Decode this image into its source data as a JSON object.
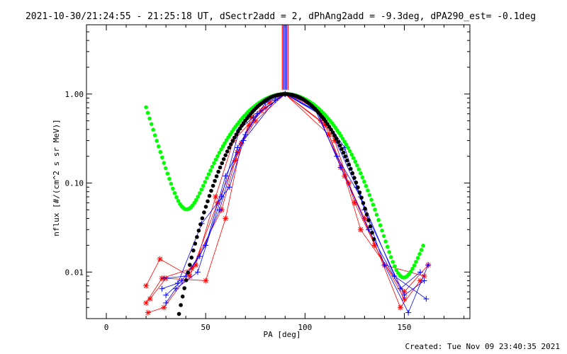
{
  "chart_data": {
    "type": "scatter",
    "title": "2021-10-30/21:24:55 - 21:25:18 UT, dSectr2add = 2, dPhAng2add = -9.3deg, dPA290_est= -0.1deg",
    "xlabel": "PA [deg]",
    "ylabel": "nflux [#/(cm^2 s sr MeV)]",
    "xlim": [
      -10,
      183
    ],
    "ylim": [
      0.003,
      6
    ],
    "yscale": "log",
    "grid": false,
    "x_ticks": [
      0,
      50,
      100,
      150
    ],
    "x_tick_labels": [
      "0",
      "50",
      "100",
      "150"
    ],
    "y_ticks": [
      0.01,
      0.1,
      1.0
    ],
    "y_tick_labels": [
      "0.01",
      "0.10",
      "1.00"
    ],
    "colors": {
      "red": "#ff0000",
      "blue": "#0000ff",
      "green": "#00ff00",
      "black": "#000000"
    },
    "series": [
      {
        "color": "#ff0000",
        "style": "line-star",
        "x": [
          20,
          28,
          43,
          58,
          66,
          72,
          80,
          90,
          110,
          120,
          128,
          150,
          162
        ],
        "y": [
          0.0045,
          0.0085,
          0.011,
          0.05,
          0.22,
          0.45,
          0.7,
          1.0,
          0.45,
          0.12,
          0.03,
          0.006,
          0.012
        ]
      },
      {
        "color": "#ff0000",
        "style": "line-star",
        "x": [
          20,
          27,
          42,
          56,
          65,
          73,
          82,
          90,
          108,
          118,
          130,
          148,
          158
        ],
        "y": [
          0.007,
          0.014,
          0.009,
          0.06,
          0.18,
          0.55,
          0.8,
          1.0,
          0.5,
          0.15,
          0.04,
          0.004,
          0.008
        ]
      },
      {
        "color": "#ff0000",
        "style": "line-star",
        "x": [
          22,
          30,
          50,
          60,
          68,
          75,
          90,
          112,
          122,
          135,
          150
        ],
        "y": [
          0.005,
          0.0085,
          0.008,
          0.04,
          0.28,
          0.5,
          1.0,
          0.35,
          0.1,
          0.02,
          0.005
        ]
      },
      {
        "color": "#ff0000",
        "style": "line-star",
        "x": [
          21,
          29,
          45,
          55,
          64,
          78,
          90,
          105,
          115,
          125,
          140,
          160
        ],
        "y": [
          0.0035,
          0.004,
          0.012,
          0.07,
          0.3,
          0.65,
          1.0,
          0.7,
          0.3,
          0.06,
          0.012,
          0.009
        ]
      },
      {
        "color": "#0000ff",
        "style": "line-plus",
        "x": [
          30,
          35,
          46,
          58,
          67,
          74,
          90,
          108,
          120,
          130,
          150,
          160
        ],
        "y": [
          0.0045,
          0.0065,
          0.01,
          0.07,
          0.4,
          0.55,
          1.0,
          0.6,
          0.25,
          0.05,
          0.0055,
          0.008
        ]
      },
      {
        "color": "#0000ff",
        "style": "line-plus",
        "x": [
          28,
          36,
          48,
          62,
          70,
          80,
          90,
          110,
          126,
          140,
          152,
          162
        ],
        "y": [
          0.0065,
          0.0075,
          0.035,
          0.09,
          0.35,
          0.8,
          1.0,
          0.55,
          0.09,
          0.012,
          0.0035,
          0.012
        ]
      },
      {
        "color": "#0000ff",
        "style": "line-plus",
        "x": [
          29,
          40,
          50,
          60,
          69,
          85,
          90,
          106,
          118,
          132,
          148,
          158
        ],
        "y": [
          0.0085,
          0.009,
          0.02,
          0.12,
          0.3,
          0.85,
          1.0,
          0.65,
          0.15,
          0.03,
          0.0065,
          0.01
        ]
      },
      {
        "color": "#0000ff",
        "style": "line-plus",
        "x": [
          30,
          38,
          47,
          57,
          66,
          76,
          90,
          104,
          116,
          128,
          145,
          161
        ],
        "y": [
          0.0055,
          0.008,
          0.015,
          0.05,
          0.25,
          0.6,
          1.0,
          0.75,
          0.2,
          0.07,
          0.009,
          0.005
        ]
      }
    ],
    "fits": [
      {
        "color": "#00ff00",
        "style": "thick-dots",
        "x_range": [
          20,
          160
        ],
        "model": "cos-power-plus-cone"
      },
      {
        "color": "#000000",
        "style": "thick-dots",
        "x_range": [
          33,
          135
        ],
        "model": "cos-power"
      }
    ],
    "vertical_lines": [
      {
        "x": 90,
        "colors": [
          "#ff0000",
          "#0000ff"
        ]
      }
    ]
  },
  "footer": {
    "created": "Created: Tue Nov 09 23:40:35 2021"
  }
}
